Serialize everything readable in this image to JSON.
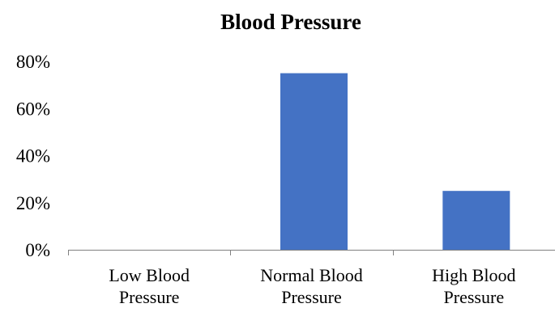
{
  "chart_data": {
    "type": "bar",
    "title": "Blood Pressure",
    "categories": [
      [
        "Low Blood",
        "Pressure"
      ],
      [
        "Normal Blood",
        "Pressure"
      ],
      [
        "High Blood",
        "Pressure"
      ]
    ],
    "values": [
      0,
      75,
      25
    ],
    "value_format": "percent",
    "ylim": [
      0,
      80
    ],
    "yticks": [
      "0%",
      "20%",
      "40%",
      "60%",
      "80%"
    ],
    "ytick_values": [
      0,
      20,
      40,
      60,
      80
    ],
    "xlabel": "",
    "ylabel": "",
    "grid": false,
    "legend": "none",
    "bar_color": "#4472C4",
    "axis_color": "#808080"
  }
}
